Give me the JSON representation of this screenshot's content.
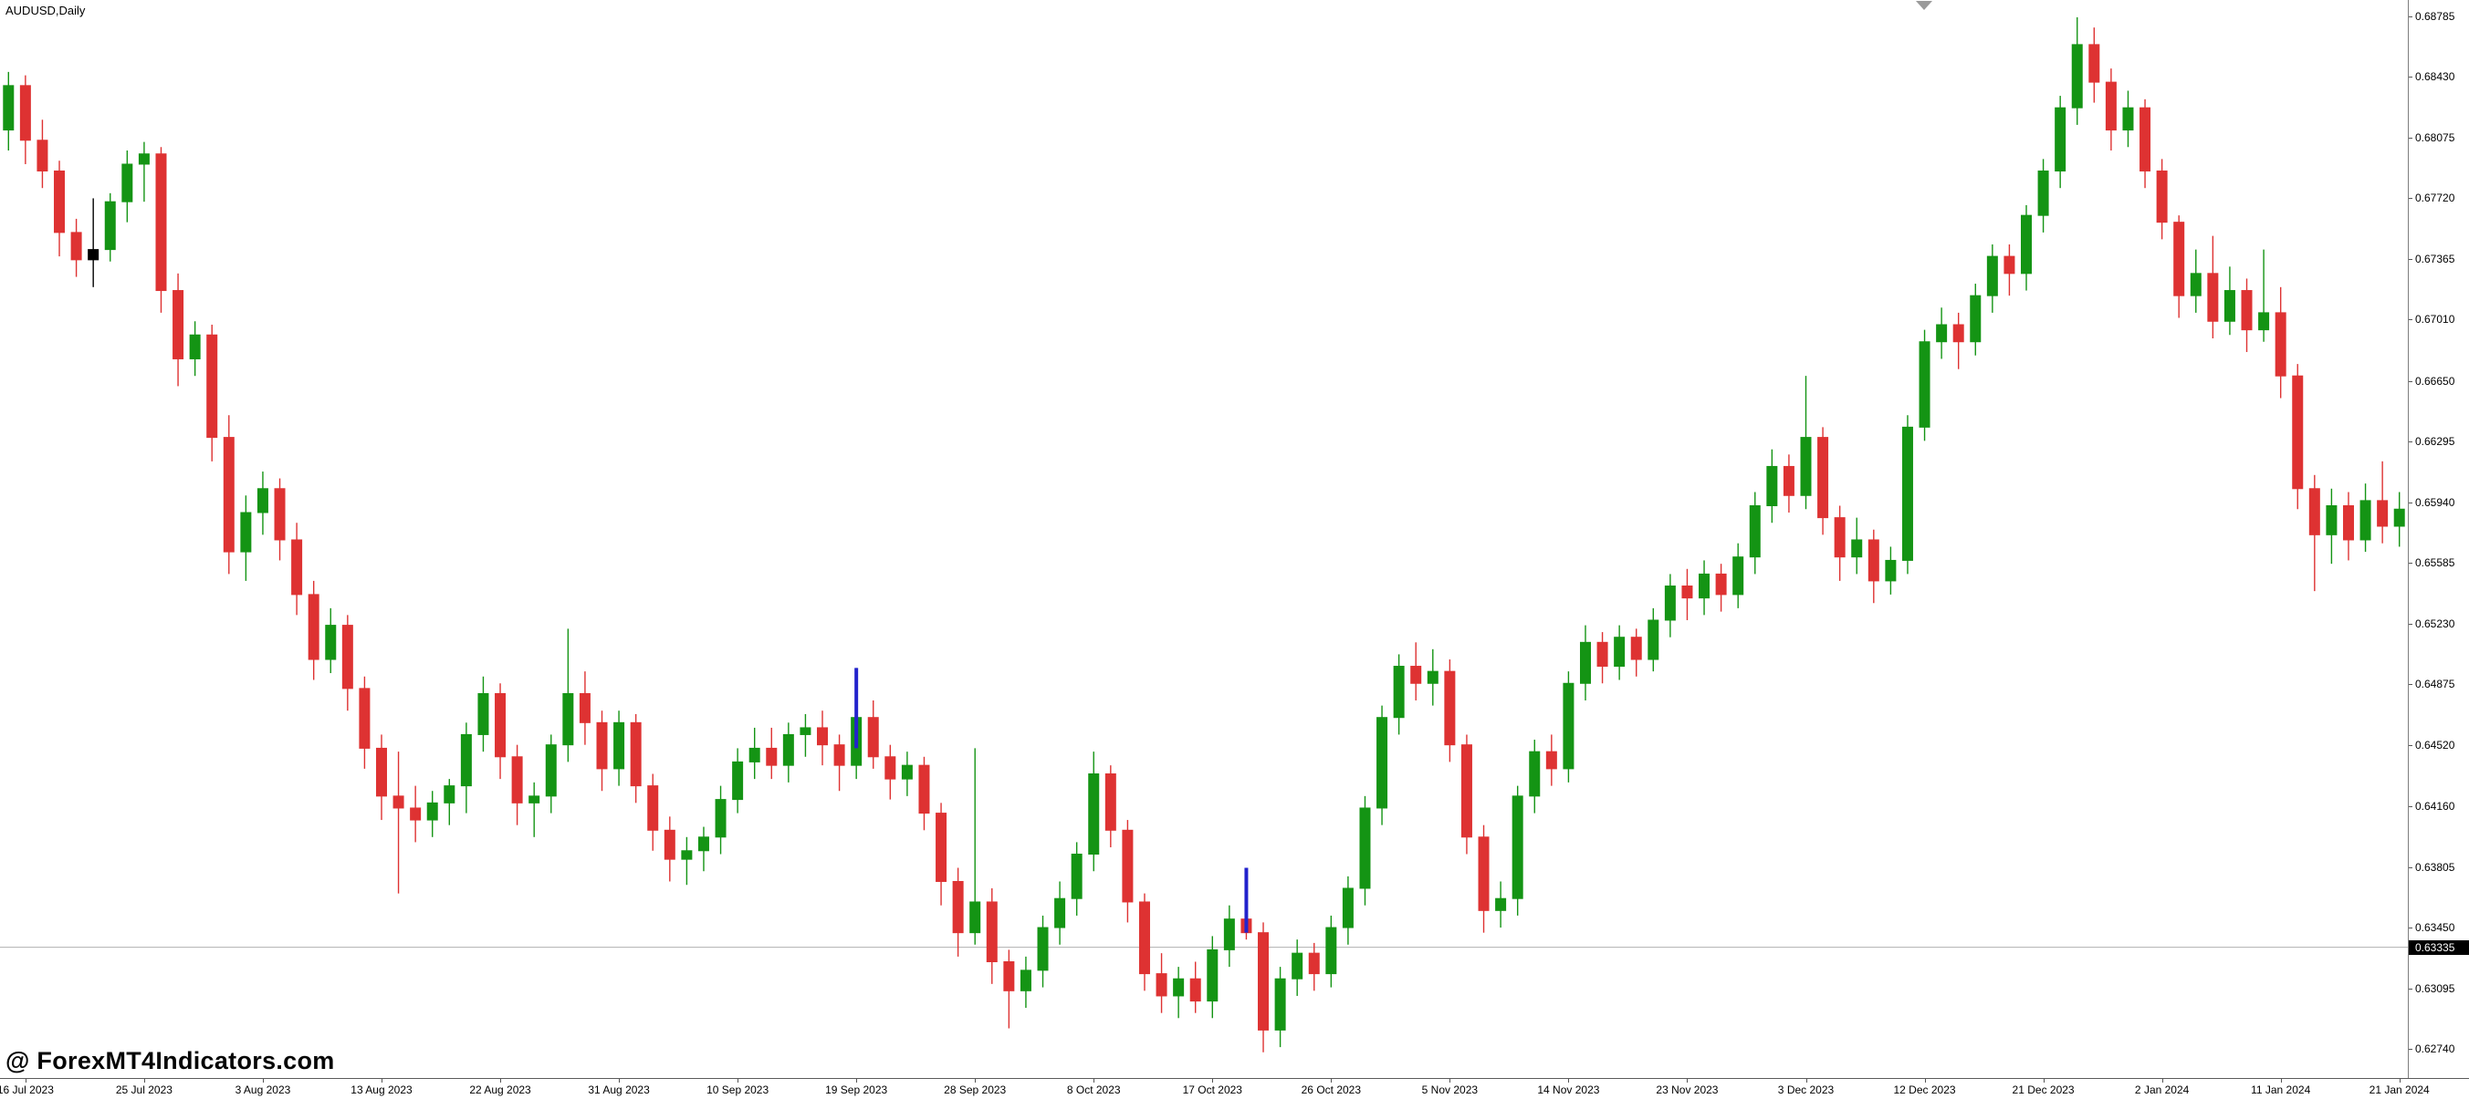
{
  "window": {
    "symbol_label": "AUDUSD,Daily"
  },
  "watermark": {
    "text": "@ ForexMT4Indicators.com"
  },
  "colors": {
    "bull": "#149414",
    "bear": "#de3232",
    "black_candle": "#000000",
    "signal": "#2323cc",
    "current_line": "#b0b0b0",
    "badge_bg": "#000000",
    "badge_text": "#ffffff",
    "shift_marker": "#9a9a9a",
    "axis_border": "#7e7e7e"
  },
  "chart_data": {
    "type": "candlestick",
    "title": "AUDUSD,Daily",
    "symbol": "AUDUSD",
    "timeframe": "Daily",
    "ylim": [
      0.6274,
      0.68785
    ],
    "price_axis_ticks": [
      "0.68785",
      "0.68430",
      "0.68075",
      "0.67720",
      "0.67365",
      "0.67010",
      "0.66650",
      "0.66295",
      "0.65940",
      "0.65585",
      "0.65230",
      "0.64875",
      "0.64520",
      "0.64160",
      "0.63805",
      "0.63450",
      "0.63095",
      "0.62740"
    ],
    "time_axis_ticks": [
      "16 Jul 2023",
      "25 Jul 2023",
      "3 Aug 2023",
      "13 Aug 2023",
      "22 Aug 2023",
      "31 Aug 2023",
      "10 Sep 2023",
      "19 Sep 2023",
      "28 Sep 2023",
      "8 Oct 2023",
      "17 Oct 2023",
      "26 Oct 2023",
      "5 Nov 2023",
      "14 Nov 2023",
      "23 Nov 2023",
      "3 Dec 2023",
      "12 Dec 2023",
      "21 Dec 2023",
      "2 Jan 2024",
      "11 Jan 2024",
      "21 Jan 2024"
    ],
    "current_line": {
      "price": 0.63335,
      "label": "0.63335"
    },
    "candle_format": "[open, high, low, close, optional_color]",
    "candles": [
      [
        0.6812,
        0.6846,
        0.68,
        0.6838
      ],
      [
        0.6838,
        0.6844,
        0.6792,
        0.6806
      ],
      [
        0.6806,
        0.6818,
        0.6778,
        0.6788
      ],
      [
        0.6788,
        0.6794,
        0.6738,
        0.6752
      ],
      [
        0.6752,
        0.676,
        0.6726,
        0.6736
      ],
      [
        0.6736,
        0.6772,
        0.672,
        0.6742,
        "black"
      ],
      [
        0.6742,
        0.6775,
        0.6735,
        0.677
      ],
      [
        0.677,
        0.68,
        0.6758,
        0.6792
      ],
      [
        0.6792,
        0.6805,
        0.677,
        0.6798
      ],
      [
        0.6798,
        0.6802,
        0.6705,
        0.6718
      ],
      [
        0.6718,
        0.6728,
        0.6662,
        0.6678
      ],
      [
        0.6678,
        0.67,
        0.6668,
        0.6692
      ],
      [
        0.6692,
        0.6698,
        0.6618,
        0.6632
      ],
      [
        0.6632,
        0.6645,
        0.6552,
        0.6565
      ],
      [
        0.6565,
        0.6598,
        0.6548,
        0.6588
      ],
      [
        0.6588,
        0.6612,
        0.6575,
        0.6602
      ],
      [
        0.6602,
        0.6608,
        0.656,
        0.6572
      ],
      [
        0.6572,
        0.6582,
        0.6528,
        0.654
      ],
      [
        0.654,
        0.6548,
        0.649,
        0.6502
      ],
      [
        0.6502,
        0.6532,
        0.6494,
        0.6522
      ],
      [
        0.6522,
        0.6528,
        0.6472,
        0.6485
      ],
      [
        0.6485,
        0.6492,
        0.6438,
        0.645
      ],
      [
        0.645,
        0.6458,
        0.6408,
        0.6422
      ],
      [
        0.6422,
        0.6448,
        0.6365,
        0.6415
      ],
      [
        0.6415,
        0.6428,
        0.6395,
        0.6408
      ],
      [
        0.6408,
        0.6425,
        0.6398,
        0.6418
      ],
      [
        0.6418,
        0.6432,
        0.6405,
        0.6428
      ],
      [
        0.6428,
        0.6465,
        0.6412,
        0.6458
      ],
      [
        0.6458,
        0.6492,
        0.6448,
        0.6482
      ],
      [
        0.6482,
        0.6488,
        0.6432,
        0.6445
      ],
      [
        0.6445,
        0.6452,
        0.6405,
        0.6418
      ],
      [
        0.6418,
        0.643,
        0.6398,
        0.6422
      ],
      [
        0.6422,
        0.6458,
        0.6412,
        0.6452
      ],
      [
        0.6452,
        0.652,
        0.6442,
        0.6482
      ],
      [
        0.6482,
        0.6495,
        0.6452,
        0.6465
      ],
      [
        0.6465,
        0.6472,
        0.6425,
        0.6438
      ],
      [
        0.6438,
        0.6472,
        0.6428,
        0.6465
      ],
      [
        0.6465,
        0.647,
        0.6418,
        0.6428
      ],
      [
        0.6428,
        0.6435,
        0.639,
        0.6402
      ],
      [
        0.6402,
        0.641,
        0.6372,
        0.6385
      ],
      [
        0.6385,
        0.6398,
        0.637,
        0.639
      ],
      [
        0.639,
        0.6404,
        0.6378,
        0.6398
      ],
      [
        0.6398,
        0.6428,
        0.6388,
        0.642
      ],
      [
        0.642,
        0.645,
        0.6412,
        0.6442
      ],
      [
        0.6442,
        0.6462,
        0.6432,
        0.645
      ],
      [
        0.645,
        0.6462,
        0.6432,
        0.644
      ],
      [
        0.644,
        0.6465,
        0.643,
        0.6458
      ],
      [
        0.6458,
        0.647,
        0.6445,
        0.6462
      ],
      [
        0.6462,
        0.6472,
        0.644,
        0.6452
      ],
      [
        0.6452,
        0.6458,
        0.6425,
        0.644
      ],
      [
        0.644,
        0.6497,
        0.6432,
        0.6468
      ],
      [
        0.6468,
        0.6478,
        0.6438,
        0.6445
      ],
      [
        0.6445,
        0.6452,
        0.642,
        0.6432
      ],
      [
        0.6432,
        0.6448,
        0.6422,
        0.644
      ],
      [
        0.644,
        0.6445,
        0.6402,
        0.6412
      ],
      [
        0.6412,
        0.6418,
        0.6358,
        0.6372
      ],
      [
        0.6372,
        0.638,
        0.6328,
        0.6342
      ],
      [
        0.6342,
        0.645,
        0.6335,
        0.636
      ],
      [
        0.636,
        0.6368,
        0.6312,
        0.6325
      ],
      [
        0.6325,
        0.6332,
        0.6286,
        0.6308
      ],
      [
        0.6308,
        0.6328,
        0.6298,
        0.632
      ],
      [
        0.632,
        0.6352,
        0.631,
        0.6345
      ],
      [
        0.6345,
        0.6372,
        0.6335,
        0.6362
      ],
      [
        0.6362,
        0.6395,
        0.6352,
        0.6388
      ],
      [
        0.6388,
        0.6448,
        0.6378,
        0.6435
      ],
      [
        0.6435,
        0.644,
        0.6392,
        0.6402
      ],
      [
        0.6402,
        0.6408,
        0.6348,
        0.636
      ],
      [
        0.636,
        0.6365,
        0.6308,
        0.6318
      ],
      [
        0.6318,
        0.633,
        0.6295,
        0.6305
      ],
      [
        0.6305,
        0.6322,
        0.6292,
        0.6315
      ],
      [
        0.6315,
        0.6325,
        0.6295,
        0.6302
      ],
      [
        0.6302,
        0.634,
        0.6292,
        0.6332
      ],
      [
        0.6332,
        0.6358,
        0.6322,
        0.635
      ],
      [
        0.635,
        0.6378,
        0.6338,
        0.6342
      ],
      [
        0.6342,
        0.6348,
        0.6272,
        0.6285
      ],
      [
        0.6285,
        0.6322,
        0.6275,
        0.6315
      ],
      [
        0.6315,
        0.6338,
        0.6305,
        0.633
      ],
      [
        0.633,
        0.6336,
        0.6308,
        0.6318
      ],
      [
        0.6318,
        0.6352,
        0.631,
        0.6345
      ],
      [
        0.6345,
        0.6375,
        0.6335,
        0.6368
      ],
      [
        0.6368,
        0.6422,
        0.6358,
        0.6415
      ],
      [
        0.6415,
        0.6475,
        0.6405,
        0.6468
      ],
      [
        0.6468,
        0.6505,
        0.6458,
        0.6498
      ],
      [
        0.6498,
        0.6512,
        0.6478,
        0.6488
      ],
      [
        0.6488,
        0.6508,
        0.6475,
        0.6495
      ],
      [
        0.6495,
        0.6502,
        0.6442,
        0.6452
      ],
      [
        0.6452,
        0.6458,
        0.6388,
        0.6398
      ],
      [
        0.6398,
        0.6405,
        0.6342,
        0.6355
      ],
      [
        0.6355,
        0.6372,
        0.6345,
        0.6362
      ],
      [
        0.6362,
        0.6428,
        0.6352,
        0.6422
      ],
      [
        0.6422,
        0.6455,
        0.6412,
        0.6448
      ],
      [
        0.6448,
        0.6458,
        0.6428,
        0.6438
      ],
      [
        0.6438,
        0.6495,
        0.643,
        0.6488
      ],
      [
        0.6488,
        0.6522,
        0.6478,
        0.6512
      ],
      [
        0.6512,
        0.6518,
        0.6488,
        0.6498
      ],
      [
        0.6498,
        0.6522,
        0.649,
        0.6515
      ],
      [
        0.6515,
        0.652,
        0.6492,
        0.6502
      ],
      [
        0.6502,
        0.6532,
        0.6495,
        0.6525
      ],
      [
        0.6525,
        0.6552,
        0.6515,
        0.6545
      ],
      [
        0.6545,
        0.6555,
        0.6525,
        0.6538
      ],
      [
        0.6538,
        0.656,
        0.6528,
        0.6552
      ],
      [
        0.6552,
        0.6558,
        0.653,
        0.654
      ],
      [
        0.654,
        0.657,
        0.6532,
        0.6562
      ],
      [
        0.6562,
        0.66,
        0.6552,
        0.6592
      ],
      [
        0.6592,
        0.6625,
        0.6582,
        0.6615
      ],
      [
        0.6615,
        0.6622,
        0.6588,
        0.6598
      ],
      [
        0.6598,
        0.6668,
        0.659,
        0.6632
      ],
      [
        0.6632,
        0.6638,
        0.6575,
        0.6585
      ],
      [
        0.6585,
        0.6592,
        0.6548,
        0.6562
      ],
      [
        0.6562,
        0.6585,
        0.6552,
        0.6572
      ],
      [
        0.6572,
        0.6578,
        0.6535,
        0.6548
      ],
      [
        0.6548,
        0.6568,
        0.654,
        0.656
      ],
      [
        0.656,
        0.6645,
        0.6552,
        0.6638
      ],
      [
        0.6638,
        0.6695,
        0.663,
        0.6688
      ],
      [
        0.6688,
        0.6708,
        0.6678,
        0.6698
      ],
      [
        0.6698,
        0.6705,
        0.6672,
        0.6688
      ],
      [
        0.6688,
        0.6722,
        0.668,
        0.6715
      ],
      [
        0.6715,
        0.6745,
        0.6705,
        0.6738
      ],
      [
        0.6738,
        0.6745,
        0.6715,
        0.6728
      ],
      [
        0.6728,
        0.6768,
        0.6718,
        0.6762
      ],
      [
        0.6762,
        0.6795,
        0.6752,
        0.6788
      ],
      [
        0.6788,
        0.6832,
        0.6778,
        0.6825
      ],
      [
        0.6825,
        0.6878,
        0.6815,
        0.6862
      ],
      [
        0.6862,
        0.6872,
        0.6828,
        0.684
      ],
      [
        0.684,
        0.6848,
        0.68,
        0.6812
      ],
      [
        0.6812,
        0.6835,
        0.6802,
        0.6825
      ],
      [
        0.6825,
        0.683,
        0.6778,
        0.6788
      ],
      [
        0.6788,
        0.6795,
        0.6748,
        0.6758
      ],
      [
        0.6758,
        0.6762,
        0.6702,
        0.6715
      ],
      [
        0.6715,
        0.6742,
        0.6705,
        0.6728
      ],
      [
        0.6728,
        0.675,
        0.669,
        0.67
      ],
      [
        0.67,
        0.6732,
        0.6692,
        0.6718
      ],
      [
        0.6718,
        0.6725,
        0.6682,
        0.6695
      ],
      [
        0.6695,
        0.6742,
        0.6688,
        0.6705
      ],
      [
        0.6705,
        0.672,
        0.6655,
        0.6668
      ],
      [
        0.6668,
        0.6675,
        0.659,
        0.6602
      ],
      [
        0.6602,
        0.661,
        0.6542,
        0.6575
      ],
      [
        0.6575,
        0.6602,
        0.6558,
        0.6592
      ],
      [
        0.6592,
        0.66,
        0.656,
        0.6572
      ],
      [
        0.6572,
        0.6605,
        0.6565,
        0.6595
      ],
      [
        0.6595,
        0.6618,
        0.657,
        0.658
      ],
      [
        0.658,
        0.66,
        0.6568,
        0.659
      ]
    ],
    "signals": [
      {
        "index": 50,
        "price_from": 0.645,
        "price_to": 0.6497,
        "color": "blue"
      },
      {
        "index": 73,
        "price_from": 0.6342,
        "price_to": 0.638,
        "color": "blue"
      }
    ]
  }
}
